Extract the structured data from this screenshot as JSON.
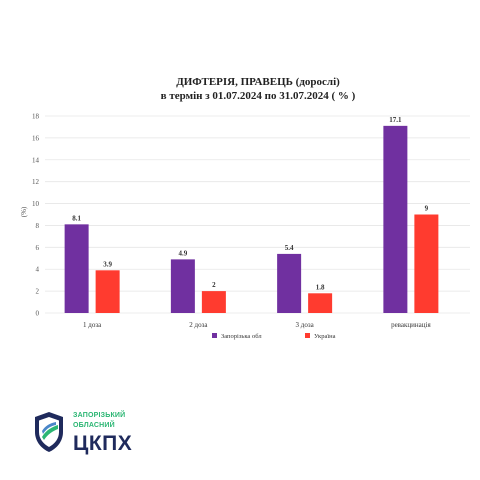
{
  "colors": {
    "zaporizhia": "#7030a0",
    "ukraine": "#ff3b2f",
    "grid": "#e6e6e6",
    "logo_green": "#2bb673",
    "logo_navy": "#1f2a5c"
  },
  "chart_data": {
    "type": "bar",
    "title": "ДИФТЕРІЯ, ПРАВЕЦЬ (дорослі)",
    "subtitle": "в термін з 01.07.2024 по 31.07.2024 ( % )",
    "ylabel": "(%)",
    "xlabel": "",
    "ylim": [
      0,
      18
    ],
    "yticks": [
      0,
      2,
      4,
      6,
      8,
      10,
      12,
      14,
      16,
      18
    ],
    "grid": true,
    "legend_position": "bottom",
    "categories": [
      "1 доза",
      "2 доза",
      "3 доза",
      "ревакцинація"
    ],
    "series": [
      {
        "name": "Запорізька обл",
        "color": "#7030a0",
        "values": [
          8.1,
          4.9,
          5.4,
          17.1
        ],
        "labels": [
          "8.1",
          "4.9",
          "5.4",
          "17.1"
        ]
      },
      {
        "name": "Україна",
        "color": "#ff3b2f",
        "values": [
          3.9,
          2,
          1.8,
          9
        ],
        "labels": [
          "3.9",
          "2",
          "1.8",
          "9"
        ]
      }
    ]
  },
  "logo": {
    "line1": "ЗАПОРІЗЬКИЙ",
    "line2": "ОБЛАСНИЙ",
    "wordmark": "ЦКПХ",
    "icon": "shield-icon"
  }
}
